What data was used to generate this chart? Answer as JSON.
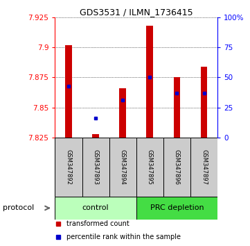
{
  "title": "GDS3531 / ILMN_1736415",
  "samples": [
    "GSM347892",
    "GSM347893",
    "GSM347894",
    "GSM347895",
    "GSM347896",
    "GSM347897"
  ],
  "bar_values": [
    7.902,
    7.828,
    7.866,
    7.918,
    7.875,
    7.884
  ],
  "bar_bottom": 7.825,
  "percentile_values": [
    7.868,
    7.841,
    7.856,
    7.875,
    7.862,
    7.862
  ],
  "ylim": [
    7.825,
    7.925
  ],
  "yticks": [
    7.825,
    7.85,
    7.875,
    7.9,
    7.925
  ],
  "ytick_labels": [
    "7.825",
    "7.85",
    "7.875",
    "7.9",
    "7.925"
  ],
  "right_yticks": [
    0,
    25,
    50,
    75,
    100
  ],
  "right_ytick_labels": [
    "0",
    "25",
    "50",
    "75",
    "100%"
  ],
  "bar_color": "#cc0000",
  "marker_color": "#0000cc",
  "protocol_groups": [
    {
      "label": "control",
      "start": 0,
      "end": 2,
      "color": "#bbffbb"
    },
    {
      "label": "PRC depletion",
      "start": 3,
      "end": 5,
      "color": "#44dd44"
    }
  ],
  "protocol_label": "protocol",
  "legend_items": [
    {
      "label": "transformed count",
      "color": "#cc0000"
    },
    {
      "label": "percentile rank within the sample",
      "color": "#0000cc"
    }
  ],
  "sample_box_color": "#cccccc",
  "plot_bg": "#ffffff"
}
